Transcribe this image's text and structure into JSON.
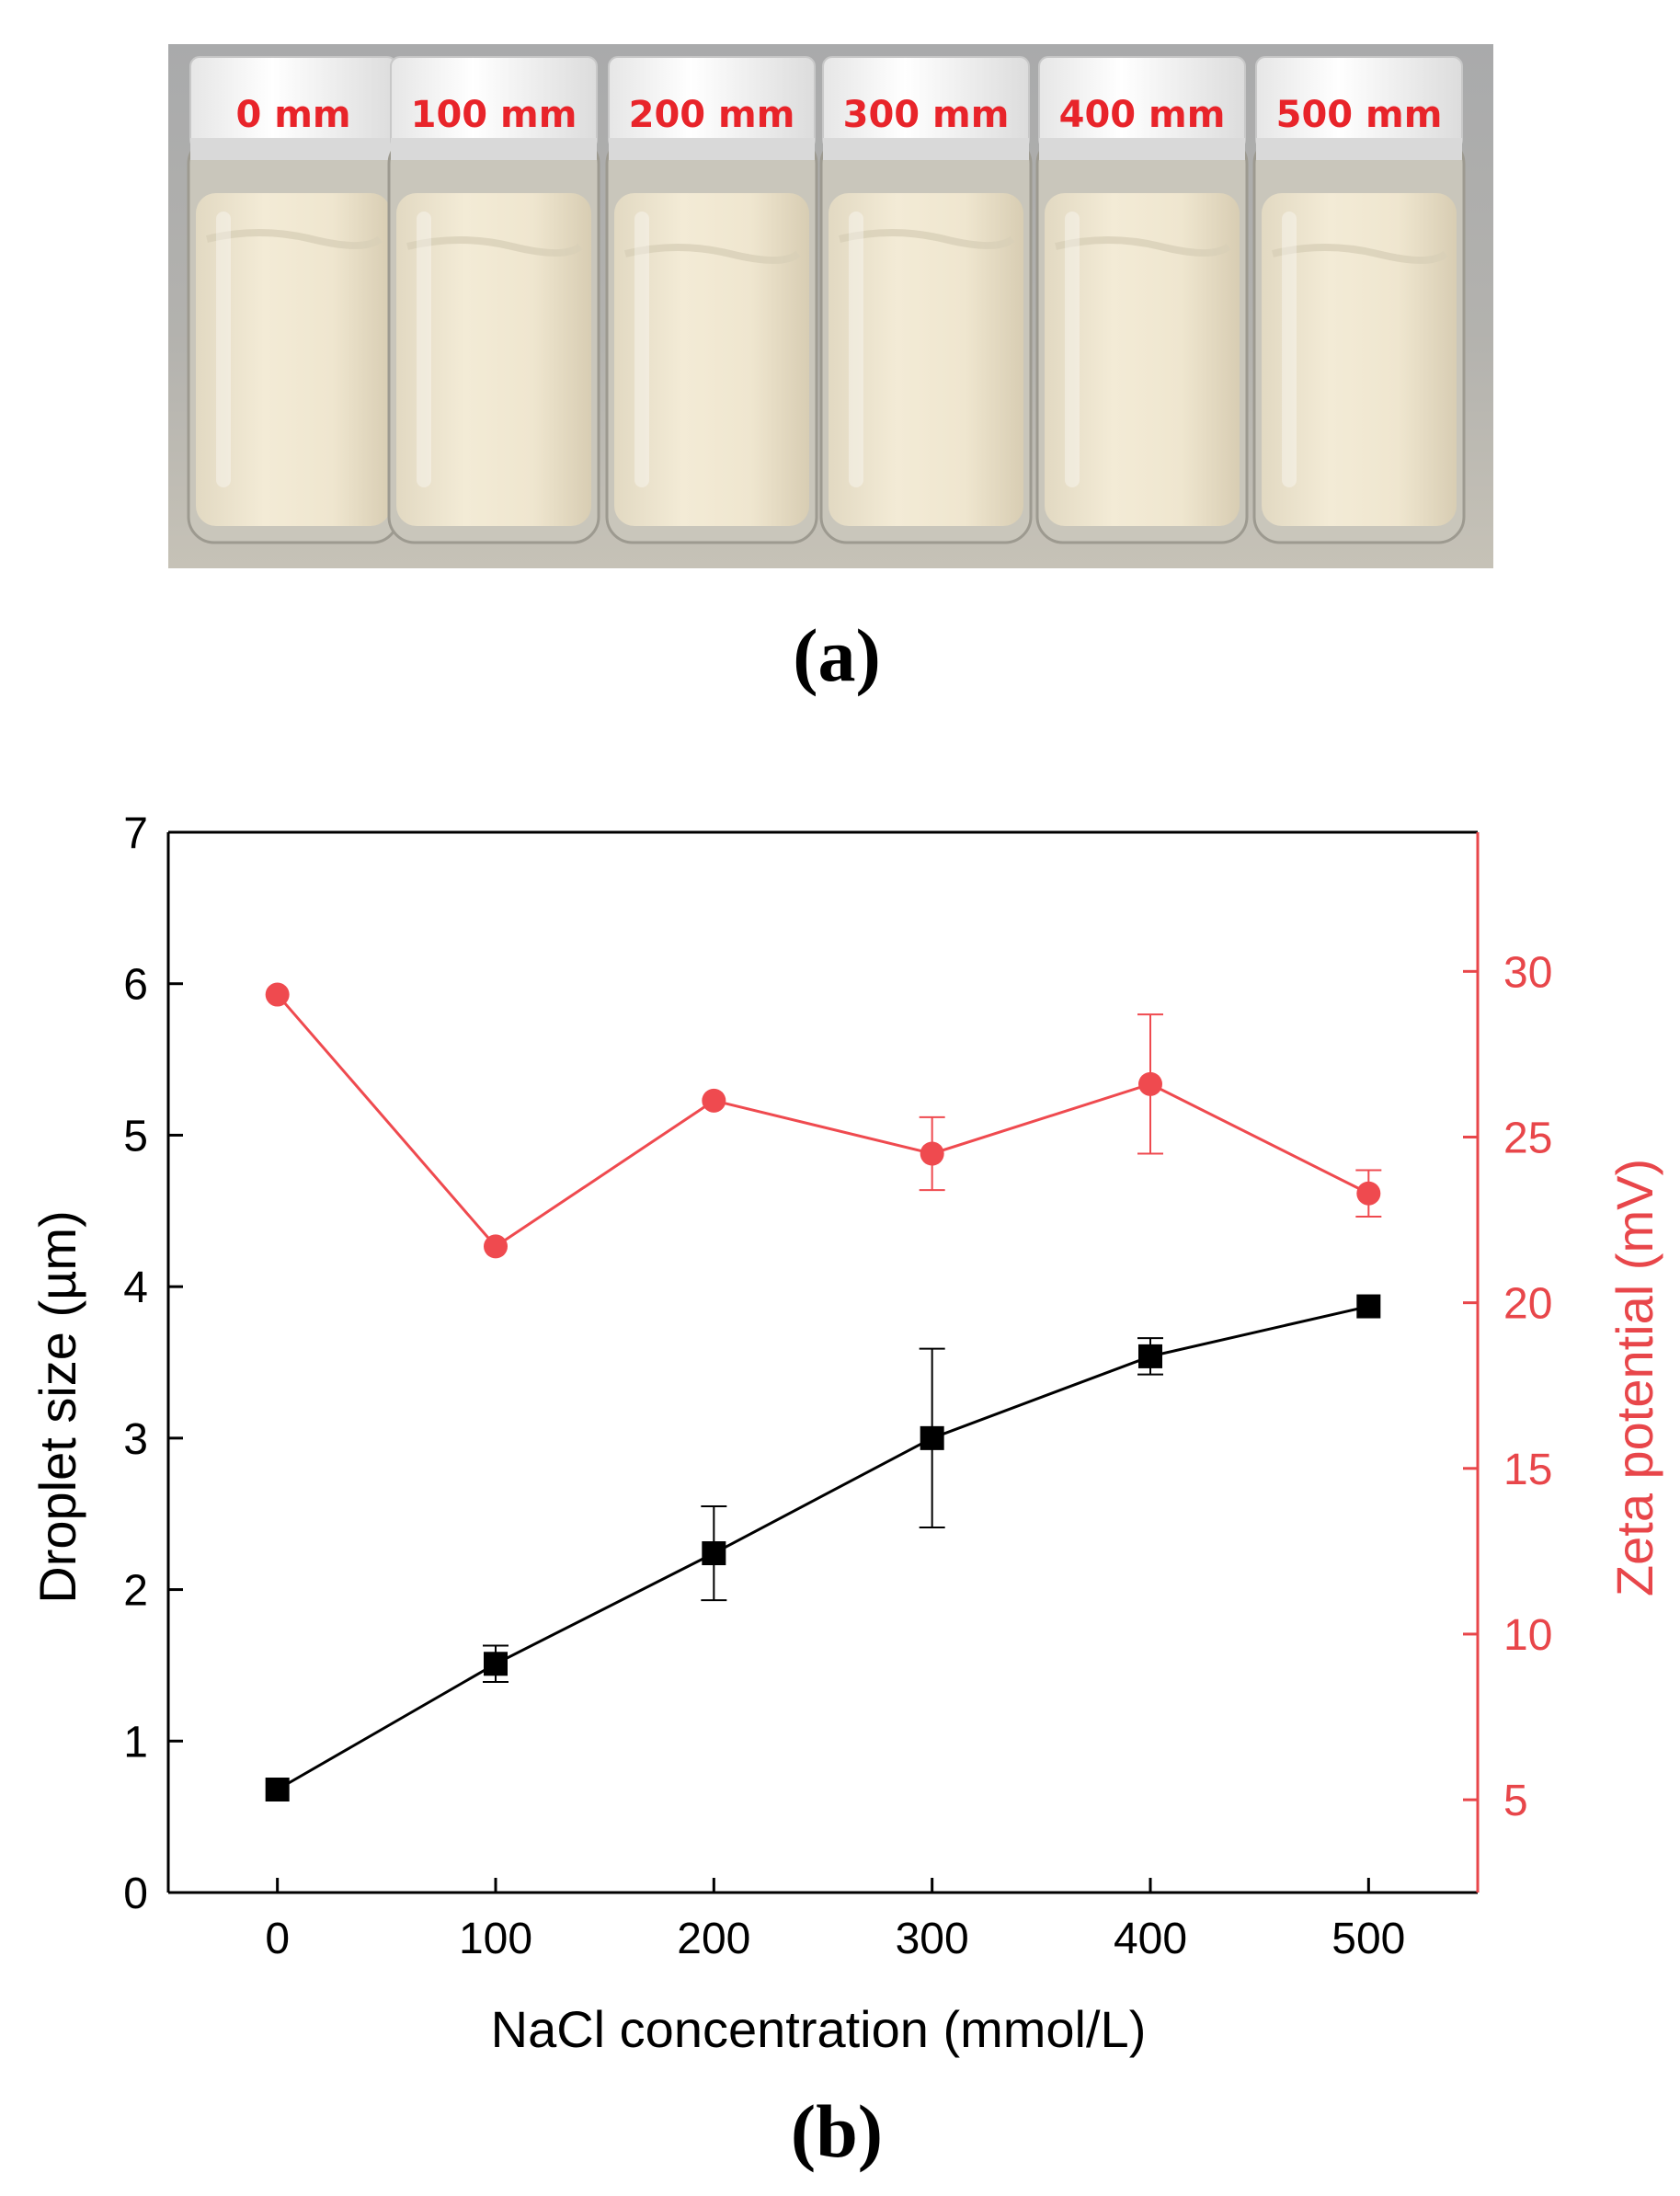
{
  "photo": {
    "vial_labels": [
      "0 mm",
      "100 mm",
      "200 mm",
      "300 mm",
      "400 mm",
      "500 mm"
    ],
    "panel_label": "(a)"
  },
  "chart_panel_label": "(b)",
  "colors": {
    "left_series": "#000000",
    "right_series": "#ef4a4f",
    "right_axis": "#e8464a"
  },
  "chart_data": {
    "type": "line",
    "title": "",
    "xlabel": "NaCl concentration (mmol/L)",
    "ylabel": "Droplet size (µm)",
    "ylabel_right": "Zeta potential (mV)",
    "x": [
      0,
      100,
      200,
      300,
      400,
      500
    ],
    "xlim": [
      -50,
      550
    ],
    "ylim": [
      0,
      7
    ],
    "ylim_right": [
      2.2,
      34.2
    ],
    "x_ticks": [
      "0",
      "100",
      "200",
      "300",
      "400",
      "500"
    ],
    "y_ticks": [
      "0",
      "1",
      "2",
      "3",
      "4",
      "5",
      "6",
      "7"
    ],
    "y_ticks_right": [
      "5",
      "10",
      "15",
      "20",
      "25",
      "30"
    ],
    "series": [
      {
        "name": "Droplet size",
        "axis": "left",
        "marker": "square",
        "values": [
          0.68,
          1.51,
          2.24,
          3.0,
          3.54,
          3.87
        ],
        "errors": [
          0.0,
          0.12,
          0.31,
          0.59,
          0.12,
          0.0
        ]
      },
      {
        "name": "Zeta potential",
        "axis": "right",
        "marker": "circle",
        "values": [
          29.3,
          21.7,
          26.1,
          24.5,
          26.6,
          23.3
        ],
        "errors": [
          0.0,
          0.0,
          0.0,
          1.1,
          2.1,
          0.7
        ]
      }
    ],
    "grid": false,
    "legend": "none"
  }
}
